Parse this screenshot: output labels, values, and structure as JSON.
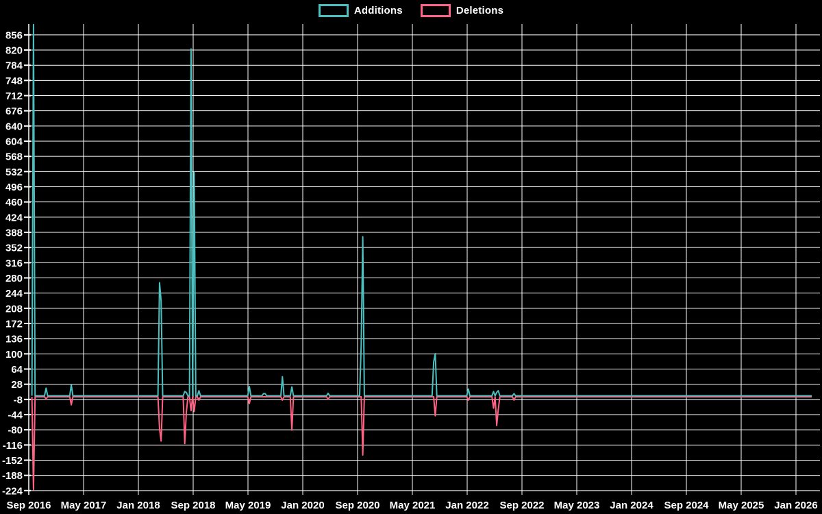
{
  "legend": {
    "additions_label": "Additions",
    "deletions_label": "Deletions"
  },
  "colors": {
    "additions": "#4bc0c0",
    "deletions": "#ff6384",
    "background": "#000000",
    "grid": "#ffffff",
    "text": "#ffffff"
  },
  "chart_data": {
    "type": "line",
    "title": "",
    "xlabel": "",
    "ylabel": "",
    "legend_position": "top",
    "grid": true,
    "x_tick_labels": [
      "Sep 2016",
      "May 2017",
      "Jan 2018",
      "Sep 2018",
      "May 2019",
      "Jan 2020",
      "Sep 2020",
      "May 2021",
      "Jan 2022",
      "Sep 2022",
      "May 2023",
      "Jan 2024",
      "Sep 2024",
      "May 2025",
      "Jan 2026"
    ],
    "months_per_x_tick": 8,
    "y_ticks": [
      856,
      820,
      784,
      748,
      712,
      676,
      640,
      604,
      568,
      532,
      496,
      460,
      424,
      388,
      352,
      316,
      280,
      244,
      208,
      172,
      136,
      100,
      64,
      28,
      -8,
      -44,
      -80,
      -116,
      -152,
      -188,
      -224
    ],
    "ylim": [
      -239,
      882
    ],
    "x_range_months": [
      0,
      114.3
    ],
    "sample_step_months": 0.23,
    "series": [
      {
        "name": "Additions",
        "color": "#4bc0c0",
        "points": [
          [
            0.8,
            880
          ],
          [
            2.5,
            18
          ],
          [
            6.2,
            26
          ],
          [
            19.0,
            268
          ],
          [
            19.35,
            225
          ],
          [
            22.7,
            10
          ],
          [
            23.0,
            8
          ],
          [
            23.8,
            822
          ],
          [
            24.2,
            530
          ],
          [
            24.8,
            12
          ],
          [
            32.1,
            22
          ],
          [
            34.3,
            5
          ],
          [
            34.6,
            5
          ],
          [
            37.1,
            45
          ],
          [
            38.5,
            21
          ],
          [
            43.6,
            6
          ],
          [
            48.6,
            120
          ],
          [
            48.85,
            377
          ],
          [
            59.1,
            80
          ],
          [
            59.3,
            100
          ],
          [
            64.1,
            16
          ],
          [
            67.8,
            10
          ],
          [
            68.2,
            8
          ],
          [
            68.6,
            12
          ],
          [
            70.9,
            5
          ]
        ]
      },
      {
        "name": "Deletions",
        "color": "#ff6384",
        "points": [
          [
            0.8,
            -220
          ],
          [
            2.5,
            -5
          ],
          [
            6.2,
            -19
          ],
          [
            19.0,
            -75
          ],
          [
            19.35,
            -105
          ],
          [
            22.7,
            -111
          ],
          [
            23.0,
            -38
          ],
          [
            23.8,
            -33
          ],
          [
            24.2,
            -35
          ],
          [
            24.8,
            -8
          ],
          [
            32.1,
            -16
          ],
          [
            37.1,
            -8
          ],
          [
            38.3,
            -30
          ],
          [
            38.5,
            -79
          ],
          [
            43.6,
            -6
          ],
          [
            48.85,
            -138
          ],
          [
            59.3,
            -45
          ],
          [
            64.1,
            -8
          ],
          [
            67.8,
            -27
          ],
          [
            68.2,
            -68
          ],
          [
            68.6,
            -30
          ],
          [
            70.9,
            -8
          ]
        ]
      }
    ]
  }
}
